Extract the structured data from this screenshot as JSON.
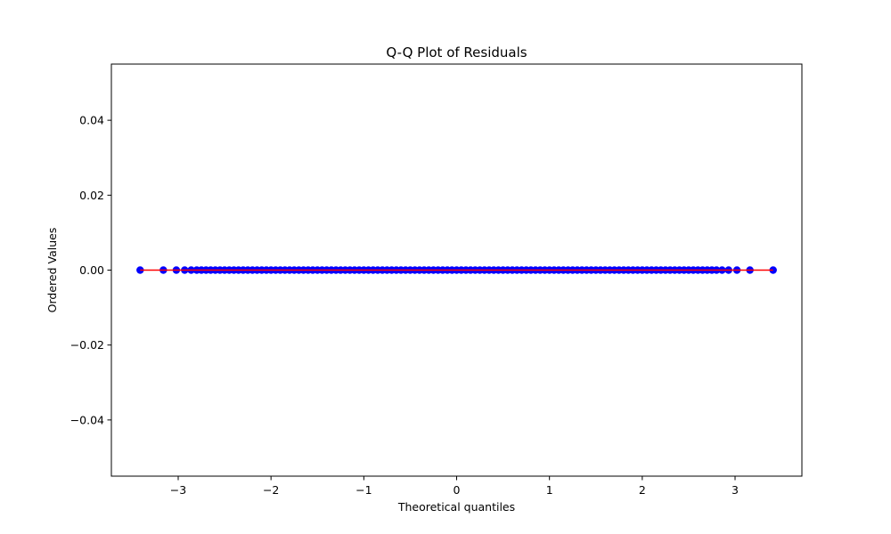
{
  "chart_data": {
    "type": "scatter",
    "title": "Q-Q Plot of Residuals",
    "xlabel": "Theoretical quantiles",
    "ylabel": "Ordered Values",
    "xlim": [
      -3.72,
      3.72
    ],
    "ylim": [
      -0.055,
      0.055
    ],
    "x_ticks": [
      -3,
      -2,
      -1,
      0,
      1,
      2,
      3
    ],
    "x_tick_labels": [
      "−3",
      "−2",
      "−1",
      "0",
      "1",
      "2",
      "3"
    ],
    "y_ticks": [
      -0.04,
      -0.02,
      0.0,
      0.02,
      0.04
    ],
    "y_tick_labels": [
      "−0.04",
      "−0.02",
      "0.00",
      "0.02",
      "0.04"
    ],
    "grid": false,
    "series": [
      {
        "kind": "points",
        "marker_color": "#0000ff",
        "x": [
          -3.41,
          -3.16,
          -3.02,
          -2.93,
          -2.86,
          -2.8,
          -2.75,
          -2.7,
          -2.65,
          -2.6,
          -2.55,
          -2.5,
          -2.45,
          -2.4,
          -2.35,
          -2.3,
          -2.25,
          -2.2,
          -2.15,
          -2.1,
          -2.05,
          -2.0,
          -1.95,
          -1.9,
          -1.85,
          -1.8,
          -1.75,
          -1.7,
          -1.65,
          -1.6,
          -1.55,
          -1.5,
          -1.45,
          -1.4,
          -1.35,
          -1.3,
          -1.25,
          -1.2,
          -1.15,
          -1.1,
          -1.05,
          -1.0,
          -0.95,
          -0.9,
          -0.85,
          -0.8,
          -0.75,
          -0.7,
          -0.65,
          -0.6,
          -0.55,
          -0.5,
          -0.45,
          -0.4,
          -0.35,
          -0.3,
          -0.25,
          -0.2,
          -0.15,
          -0.1,
          -0.05,
          0.0,
          0.05,
          0.1,
          0.15,
          0.2,
          0.25,
          0.3,
          0.35,
          0.4,
          0.45,
          0.5,
          0.55,
          0.6,
          0.65,
          0.7,
          0.75,
          0.8,
          0.85,
          0.9,
          0.95,
          1.0,
          1.05,
          1.1,
          1.15,
          1.2,
          1.25,
          1.3,
          1.35,
          1.4,
          1.45,
          1.5,
          1.55,
          1.6,
          1.65,
          1.7,
          1.75,
          1.8,
          1.85,
          1.9,
          1.95,
          2.0,
          2.05,
          2.1,
          2.15,
          2.2,
          2.25,
          2.3,
          2.35,
          2.4,
          2.45,
          2.5,
          2.55,
          2.6,
          2.65,
          2.7,
          2.75,
          2.8,
          2.86,
          2.93,
          3.02,
          3.16,
          3.41
        ],
        "y_value": 0.0
      },
      {
        "kind": "fit-line",
        "line_color": "#ff0000",
        "x": [
          -3.41,
          3.41
        ],
        "y": [
          0.0,
          0.0
        ]
      }
    ]
  }
}
